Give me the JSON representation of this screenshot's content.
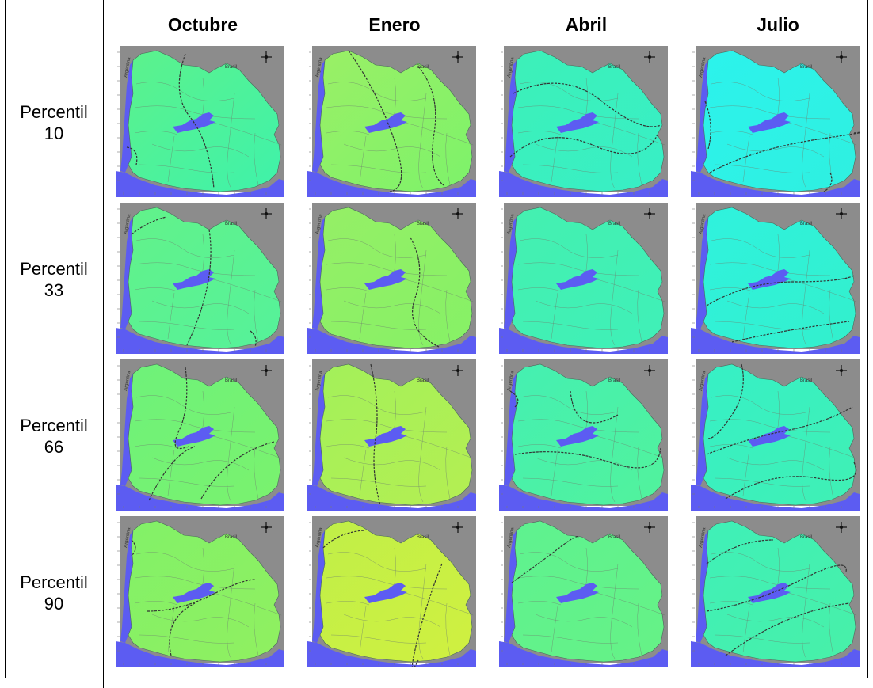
{
  "columns": [
    "Octubre",
    "Enero",
    "Abril",
    "Julio"
  ],
  "rows": [
    {
      "label_line1": "Percentil",
      "label_line2": "10"
    },
    {
      "label_line1": "Percentil",
      "label_line2": "33"
    },
    {
      "label_line1": "Percentil",
      "label_line2": "66"
    },
    {
      "label_line1": "Percentil",
      "label_line2": "90"
    }
  ],
  "map_labels": {
    "argentina": "Argentina",
    "brasil": "Brasil"
  },
  "colors": {
    "land_outside": "#8c8c8c",
    "water": "#5c5cf2",
    "isolines": "#333333",
    "borders": "#6e7e6e"
  },
  "panels": [
    [
      {
        "month": "Octubre",
        "percentile": "10",
        "fill_a": "#3ff2aa",
        "fill_b": "#5cf28c"
      },
      {
        "month": "Enero",
        "percentile": "10",
        "fill_a": "#7df26a",
        "fill_b": "#9af066"
      },
      {
        "month": "Abril",
        "percentile": "10",
        "fill_a": "#38efc6",
        "fill_b": "#3cf0b8"
      },
      {
        "month": "Julio",
        "percentile": "10",
        "fill_a": "#2ff0e0",
        "fill_b": "#2cf3ec"
      }
    ],
    [
      {
        "month": "Octubre",
        "percentile": "33",
        "fill_a": "#55f29a",
        "fill_b": "#62f28a"
      },
      {
        "month": "Enero",
        "percentile": "33",
        "fill_a": "#86f166",
        "fill_b": "#95ef66"
      },
      {
        "month": "Abril",
        "percentile": "33",
        "fill_a": "#3ff0b8",
        "fill_b": "#44f0b0"
      },
      {
        "month": "Julio",
        "percentile": "33",
        "fill_a": "#33f0cc",
        "fill_b": "#2ff2de"
      }
    ],
    [
      {
        "month": "Octubre",
        "percentile": "66",
        "fill_a": "#7af26e",
        "fill_b": "#6ef27a"
      },
      {
        "month": "Enero",
        "percentile": "66",
        "fill_a": "#b4ef52",
        "fill_b": "#a3f05a"
      },
      {
        "month": "Abril",
        "percentile": "66",
        "fill_a": "#52f29c",
        "fill_b": "#44f0b2"
      },
      {
        "month": "Julio",
        "percentile": "66",
        "fill_a": "#40f0b4",
        "fill_b": "#36f0c6"
      }
    ],
    [
      {
        "month": "Octubre",
        "percentile": "90",
        "fill_a": "#90f060",
        "fill_b": "#82f168"
      },
      {
        "month": "Enero",
        "percentile": "90",
        "fill_a": "#d0f040",
        "fill_b": "#c0ef48"
      },
      {
        "month": "Abril",
        "percentile": "90",
        "fill_a": "#66f286",
        "fill_b": "#5ef290"
      },
      {
        "month": "Julio",
        "percentile": "90",
        "fill_a": "#48f0a8",
        "fill_b": "#3ff0b8"
      }
    ]
  ]
}
